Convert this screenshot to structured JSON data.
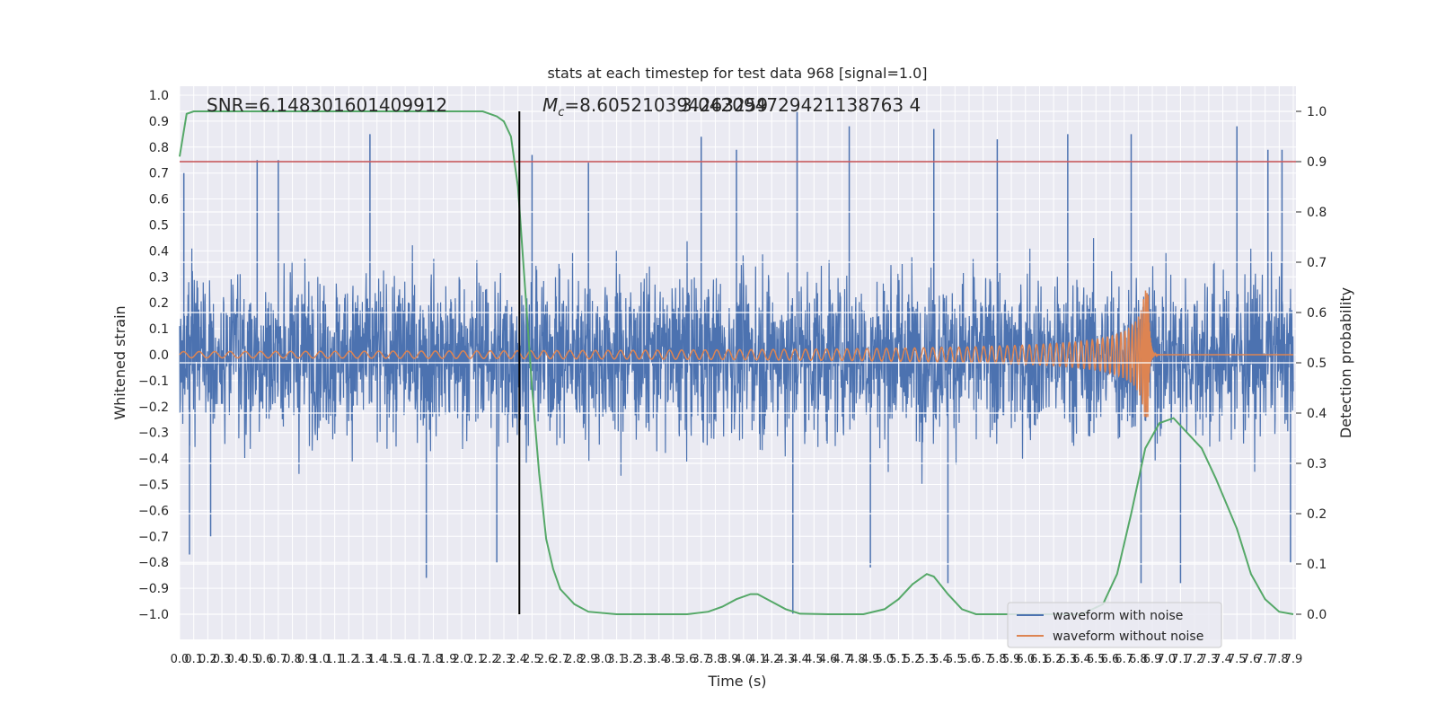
{
  "chart_data": {
    "type": "line",
    "title": "stats at each timestep for test data 968 [signal=1.0]",
    "xlabel": "Time (s)",
    "ylabel_left": "Whitened strain",
    "ylabel_right": "Detection probability",
    "xlim": [
      0.0,
      7.9
    ],
    "ylim_left": [
      -1.0,
      1.0
    ],
    "ylim_right": [
      0.0,
      1.0
    ],
    "grid": true,
    "legend_position": "lower-right",
    "x_ticks": [
      0.0,
      0.1,
      0.2,
      0.3,
      0.4,
      0.5,
      0.6,
      0.7,
      0.8,
      0.9,
      1.0,
      1.1,
      1.2,
      1.3,
      1.4,
      1.5,
      1.6,
      1.7,
      1.8,
      1.9,
      2.0,
      2.1,
      2.2,
      2.3,
      2.4,
      2.5,
      2.6,
      2.7,
      2.8,
      2.9,
      3.0,
      3.1,
      3.2,
      3.3,
      3.4,
      3.5,
      3.6,
      3.7,
      3.8,
      3.9,
      4.0,
      4.1,
      4.2,
      4.3,
      4.4,
      4.5,
      4.6,
      4.7,
      4.8,
      4.9,
      5.0,
      5.1,
      5.2,
      5.3,
      5.4,
      5.5,
      5.6,
      5.7,
      5.8,
      5.9,
      6.0,
      6.1,
      6.2,
      6.3,
      6.4,
      6.5,
      6.6,
      6.7,
      6.8,
      6.9,
      7.0,
      7.1,
      7.2,
      7.3,
      7.4,
      7.5,
      7.6,
      7.7,
      7.8,
      7.9
    ],
    "y_left_ticks": [
      -1.0,
      -0.9,
      -0.8,
      -0.7,
      -0.6,
      -0.5,
      -0.4,
      -0.3,
      -0.2,
      -0.1,
      0.0,
      0.1,
      0.2,
      0.3,
      0.4,
      0.5,
      0.6,
      0.7,
      0.8,
      0.9,
      1.0
    ],
    "y_right_ticks": [
      0.0,
      0.1,
      0.2,
      0.3,
      0.4,
      0.5,
      0.6,
      0.7,
      0.8,
      0.9,
      1.0
    ],
    "annotations": {
      "snr": "SNR=6.148301601409912",
      "mc_symbol": "M",
      "mc_sub": "c",
      "mc_value": "=8.605210394263259",
      "overlap": "3.042094729421138763 4"
    },
    "series": [
      {
        "name": "waveform with noise",
        "color": "#4c72b0",
        "axis": "left",
        "description_envelope": "dense noise between about -0.45 and 0.4 with spikes",
        "spikes": [
          {
            "x": 0.03,
            "y": 0.7
          },
          {
            "x": 0.07,
            "y": -0.77
          },
          {
            "x": 0.22,
            "y": -0.7
          },
          {
            "x": 0.55,
            "y": 0.75
          },
          {
            "x": 0.7,
            "y": 0.75
          },
          {
            "x": 1.35,
            "y": 0.85
          },
          {
            "x": 1.75,
            "y": -0.86
          },
          {
            "x": 2.25,
            "y": -0.8
          },
          {
            "x": 2.5,
            "y": 0.77
          },
          {
            "x": 2.9,
            "y": 0.74
          },
          {
            "x": 3.7,
            "y": 0.84
          },
          {
            "x": 3.95,
            "y": 0.79
          },
          {
            "x": 4.38,
            "y": 0.94
          },
          {
            "x": 4.35,
            "y": -1.0
          },
          {
            "x": 4.75,
            "y": 0.88
          },
          {
            "x": 4.9,
            "y": -0.82
          },
          {
            "x": 5.35,
            "y": 0.87
          },
          {
            "x": 5.45,
            "y": -0.88
          },
          {
            "x": 5.8,
            "y": 0.83
          },
          {
            "x": 6.3,
            "y": 0.85
          },
          {
            "x": 6.75,
            "y": 0.85
          },
          {
            "x": 6.82,
            "y": -0.88
          },
          {
            "x": 7.1,
            "y": -0.88
          },
          {
            "x": 7.5,
            "y": 0.88
          },
          {
            "x": 7.72,
            "y": 0.79
          },
          {
            "x": 7.82,
            "y": 0.79
          },
          {
            "x": 7.88,
            "y": -0.8
          }
        ]
      },
      {
        "name": "waveform without noise",
        "color": "#dd8452",
        "axis": "left",
        "chirp_merger_time": 6.87,
        "peak_amplitude": 0.25
      },
      {
        "name": "",
        "color": "#55a868",
        "axis": "right",
        "points": [
          [
            0.0,
            0.91
          ],
          [
            0.05,
            0.995
          ],
          [
            0.1,
            1.0
          ],
          [
            2.15,
            1.0
          ],
          [
            2.25,
            0.99
          ],
          [
            2.3,
            0.98
          ],
          [
            2.35,
            0.95
          ],
          [
            2.4,
            0.85
          ],
          [
            2.45,
            0.65
          ],
          [
            2.5,
            0.45
          ],
          [
            2.55,
            0.28
          ],
          [
            2.6,
            0.15
          ],
          [
            2.65,
            0.09
          ],
          [
            2.7,
            0.05
          ],
          [
            2.8,
            0.02
          ],
          [
            2.9,
            0.005
          ],
          [
            3.1,
            0.0
          ],
          [
            3.6,
            0.0
          ],
          [
            3.75,
            0.005
          ],
          [
            3.85,
            0.015
          ],
          [
            3.95,
            0.03
          ],
          [
            4.05,
            0.04
          ],
          [
            4.1,
            0.04
          ],
          [
            4.2,
            0.025
          ],
          [
            4.3,
            0.01
          ],
          [
            4.4,
            0.001
          ],
          [
            4.6,
            0.0
          ],
          [
            4.85,
            0.0
          ],
          [
            5.0,
            0.01
          ],
          [
            5.1,
            0.03
          ],
          [
            5.2,
            0.06
          ],
          [
            5.3,
            0.08
          ],
          [
            5.35,
            0.075
          ],
          [
            5.45,
            0.04
          ],
          [
            5.55,
            0.01
          ],
          [
            5.65,
            0.0
          ],
          [
            6.4,
            0.0
          ],
          [
            6.55,
            0.02
          ],
          [
            6.65,
            0.08
          ],
          [
            6.75,
            0.2
          ],
          [
            6.85,
            0.33
          ],
          [
            6.95,
            0.38
          ],
          [
            7.05,
            0.39
          ],
          [
            7.15,
            0.36
          ],
          [
            7.25,
            0.33
          ],
          [
            7.35,
            0.27
          ],
          [
            7.5,
            0.17
          ],
          [
            7.6,
            0.08
          ],
          [
            7.7,
            0.03
          ],
          [
            7.8,
            0.005
          ],
          [
            7.9,
            0.0
          ]
        ]
      }
    ],
    "threshold_line": {
      "axis": "right",
      "y": 0.9,
      "color": "#c44e52"
    },
    "vertical_marker": {
      "x": 2.41,
      "color": "#000000"
    }
  }
}
